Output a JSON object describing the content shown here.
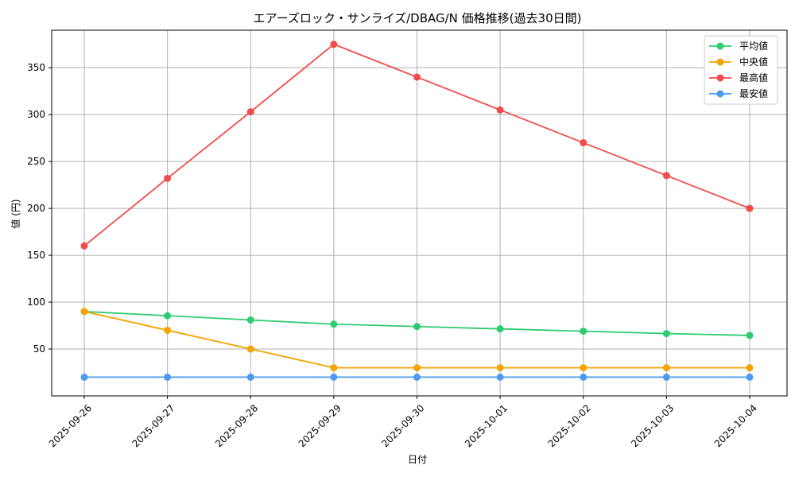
{
  "chart_data": {
    "type": "line",
    "title": "エアーズロック・サンライズ/DBAG/N 価格推移(過去30日間)",
    "xlabel": "日付",
    "ylabel": "値 (円)",
    "categories": [
      "2025-09-26",
      "2025-09-27",
      "2025-09-28",
      "2025-09-29",
      "2025-09-30",
      "2025-10-01",
      "2025-10-02",
      "2025-10-03",
      "2025-10-04"
    ],
    "ylim": [
      0,
      390
    ],
    "yticks": [
      50,
      100,
      150,
      200,
      250,
      300,
      350
    ],
    "grid": true,
    "legend_position": "top-right",
    "series": [
      {
        "name": "平均値",
        "color": "#2ecc71",
        "values": [
          90,
          85.5,
          81,
          76.5,
          74,
          71.5,
          69,
          66.5,
          64.5
        ]
      },
      {
        "name": "中央値",
        "color": "#f5a300",
        "values": [
          90,
          70,
          50,
          30,
          30,
          30,
          30,
          30,
          30
        ]
      },
      {
        "name": "最高値",
        "color": "#f24b4b",
        "values": [
          160,
          232,
          303,
          375,
          340,
          305,
          270,
          235,
          200
        ]
      },
      {
        "name": "最安値",
        "color": "#4a9af0",
        "values": [
          20,
          20,
          20,
          20,
          20,
          20,
          20,
          20,
          20
        ]
      }
    ]
  }
}
